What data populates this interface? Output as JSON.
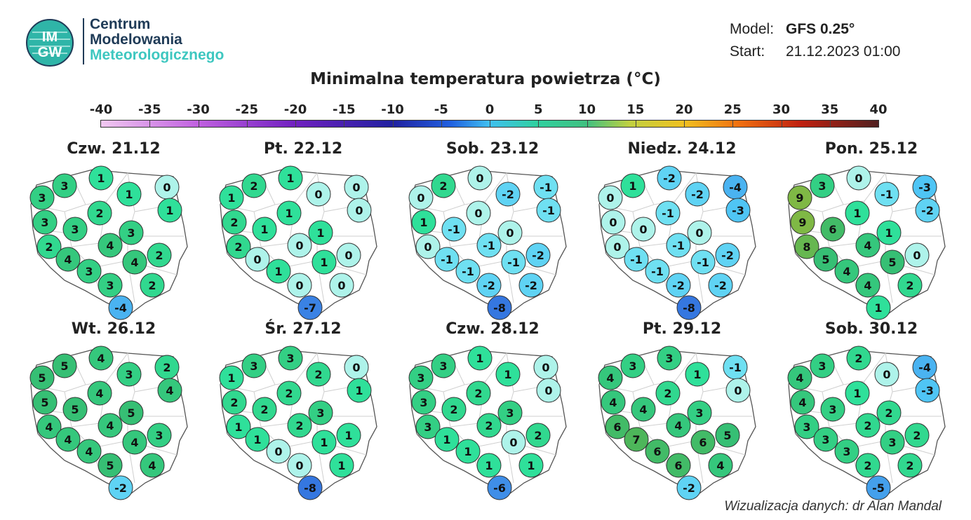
{
  "logo": {
    "abbr_top": "IM",
    "abbr_bottom": "GW",
    "line1": "Centrum",
    "line2": "Modelowania",
    "line3": "Meteorologicznego"
  },
  "model": {
    "model_label": "Model:",
    "model_value": "GFS 0.25°",
    "start_label": "Start:",
    "start_value": "21.12.2023 01:00"
  },
  "title": "Minimalna temperatura powietrza (°C)",
  "scale": {
    "labels": [
      "-40",
      "-35",
      "-30",
      "-25",
      "-20",
      "-15",
      "-10",
      "-5",
      "0",
      "5",
      "10",
      "15",
      "20",
      "25",
      "30",
      "35",
      "40"
    ],
    "colors": [
      "#f0c8f0",
      "#c060e0",
      "#7020c0",
      "#2020a0",
      "#2060e0",
      "#40c0f0",
      "#30d0a0",
      "#40c080",
      "#c0d040",
      "#f0c020",
      "#f07010",
      "#c02010",
      "#502020"
    ]
  },
  "panels": [
    {
      "date": "Czw. 21.12",
      "values": [
        3,
        1,
        3,
        1,
        0,
        1,
        3,
        2,
        3,
        3,
        2,
        4,
        2,
        4,
        4,
        3,
        3,
        2,
        -4
      ]
    },
    {
      "date": "Pt. 22.12",
      "values": [
        2,
        1,
        1,
        0,
        0,
        0,
        2,
        1,
        1,
        1,
        2,
        0,
        0,
        0,
        1,
        1,
        0,
        0,
        -7
      ]
    },
    {
      "date": "Sob. 23.12",
      "values": [
        2,
        0,
        0,
        -2,
        -1,
        -1,
        1,
        0,
        -1,
        0,
        0,
        -1,
        -2,
        -1,
        -1,
        -1,
        -2,
        -2,
        -8
      ]
    },
    {
      "date": "Niedz. 24.12",
      "values": [
        1,
        -2,
        0,
        -2,
        -4,
        -3,
        0,
        -1,
        0,
        0,
        0,
        -1,
        -2,
        -1,
        -1,
        -1,
        -2,
        -2,
        -8
      ]
    },
    {
      "date": "Pon. 25.12",
      "values": [
        3,
        0,
        9,
        -1,
        -3,
        -2,
        9,
        1,
        6,
        1,
        8,
        4,
        0,
        5,
        5,
        4,
        4,
        2,
        1
      ]
    },
    {
      "date": "Wt. 26.12",
      "values": [
        5,
        4,
        5,
        3,
        2,
        4,
        5,
        4,
        5,
        5,
        4,
        4,
        3,
        4,
        4,
        4,
        5,
        4,
        -2
      ]
    },
    {
      "date": "Śr. 27.12",
      "values": [
        3,
        3,
        1,
        2,
        0,
        1,
        2,
        2,
        2,
        3,
        1,
        2,
        1,
        1,
        1,
        0,
        0,
        1,
        -8
      ]
    },
    {
      "date": "Czw. 28.12",
      "values": [
        3,
        1,
        3,
        1,
        0,
        0,
        3,
        2,
        2,
        3,
        3,
        2,
        2,
        1,
        0,
        1,
        1,
        1,
        -6
      ]
    },
    {
      "date": "Pt. 29.12",
      "values": [
        3,
        3,
        4,
        1,
        -1,
        0,
        4,
        2,
        4,
        3,
        6,
        4,
        5,
        7,
        6,
        6,
        6,
        4,
        -2
      ]
    },
    {
      "date": "Sob. 30.12",
      "values": [
        3,
        2,
        4,
        0,
        -4,
        -3,
        4,
        1,
        3,
        2,
        3,
        2,
        2,
        3,
        3,
        3,
        2,
        2,
        -5
      ]
    }
  ],
  "footer": "Wizualizacja danych: dr Alan Mandal"
}
